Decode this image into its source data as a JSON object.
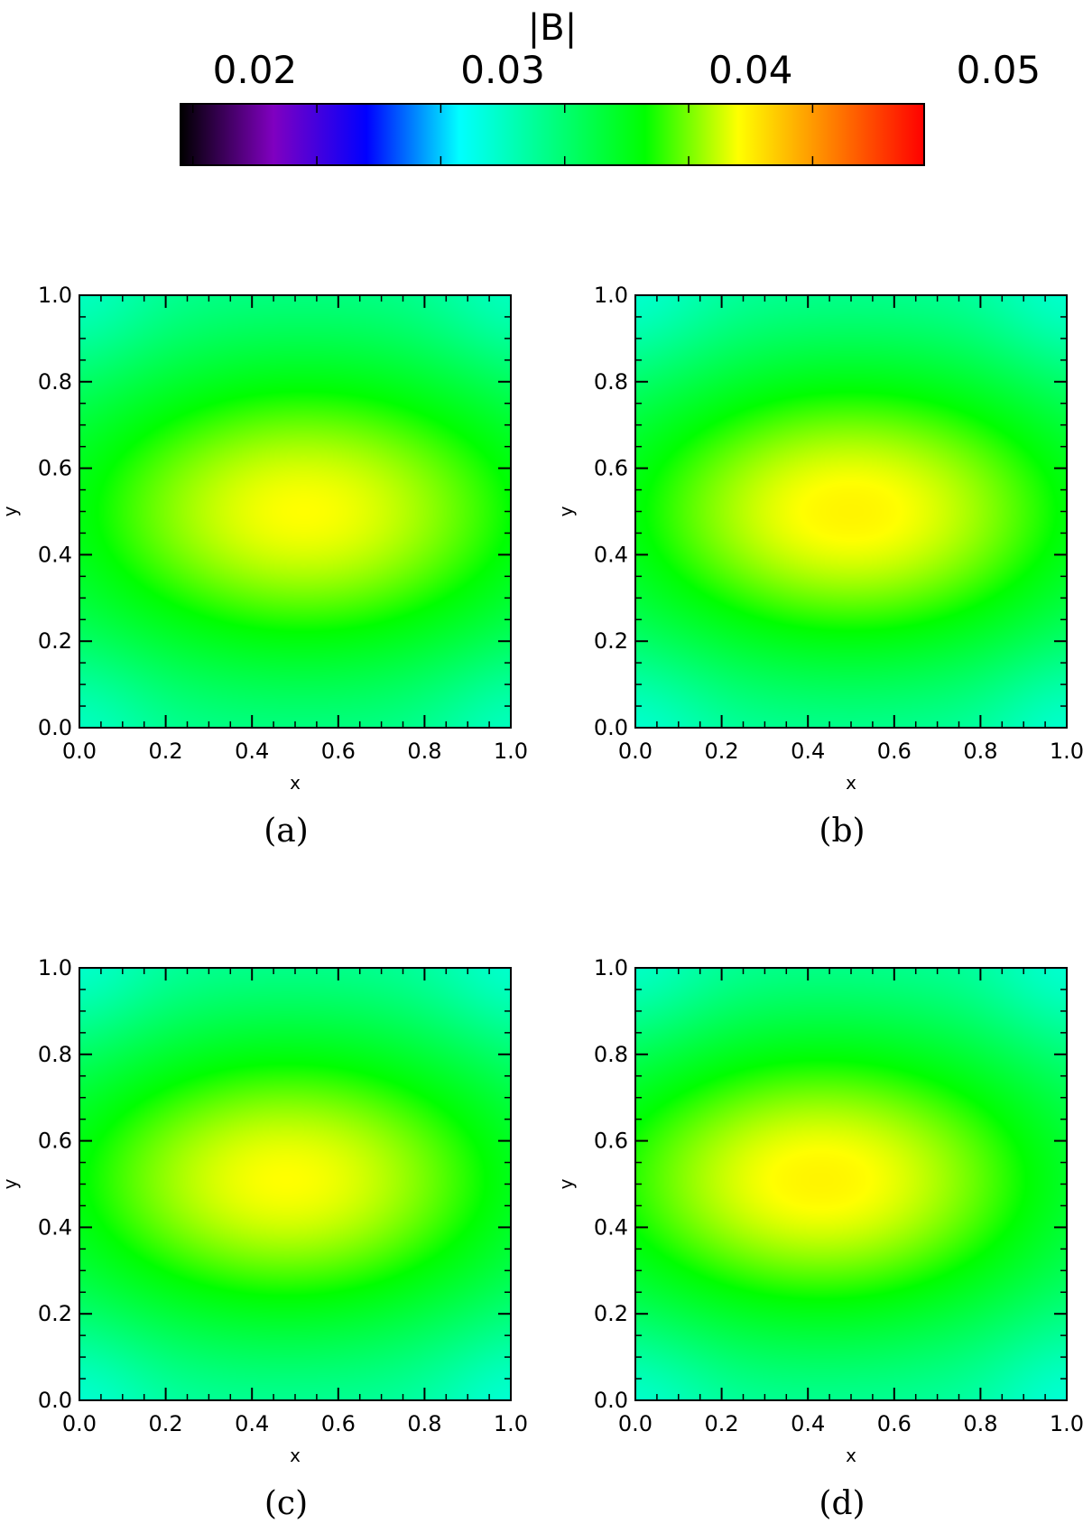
{
  "colorbar": {
    "title": "|B|",
    "ticks": [
      0.02,
      0.03,
      0.04,
      0.05
    ],
    "tick_labels": [
      "0.02",
      "0.03",
      "0.04",
      "0.05"
    ],
    "range": [
      0.017,
      0.047
    ],
    "colormap_stops": [
      "#000000",
      "#8000c0",
      "#0000ff",
      "#00ffff",
      "#00ff80",
      "#00ff00",
      "#ffff00",
      "#ff8000",
      "#ff0000"
    ]
  },
  "chart_data": [
    {
      "type": "heatmap",
      "panel_label": "(a)",
      "xlabel": "x",
      "ylabel": "y",
      "xlim": [
        0.0,
        1.0
      ],
      "ylim": [
        0.0,
        1.0
      ],
      "xticks": [
        "0.0",
        "0.2",
        "0.4",
        "0.6",
        "0.8",
        "1.0"
      ],
      "yticks": [
        "0.0",
        "0.2",
        "0.4",
        "0.6",
        "0.8",
        "1.0"
      ],
      "peak_x": 0.52,
      "peak_y": 0.5,
      "peak_value": 0.0395,
      "edge_value_center": 0.033,
      "corner_value": 0.0305
    },
    {
      "type": "heatmap",
      "panel_label": "(b)",
      "xlabel": "x",
      "ylabel": "y",
      "xlim": [
        0.0,
        1.0
      ],
      "ylim": [
        0.0,
        1.0
      ],
      "xticks": [
        "0.0",
        "0.2",
        "0.4",
        "0.6",
        "0.8",
        "1.0"
      ],
      "yticks": [
        "0.0",
        "0.2",
        "0.4",
        "0.6",
        "0.8",
        "1.0"
      ],
      "peak_x": 0.5,
      "peak_y": 0.5,
      "peak_value": 0.0398,
      "edge_value_center": 0.033,
      "corner_value": 0.03
    },
    {
      "type": "heatmap",
      "panel_label": "(c)",
      "xlabel": "x",
      "ylabel": "y",
      "xlim": [
        0.0,
        1.0
      ],
      "ylim": [
        0.0,
        1.0
      ],
      "xticks": [
        "0.0",
        "0.2",
        "0.4",
        "0.6",
        "0.8",
        "1.0"
      ],
      "yticks": [
        "0.0",
        "0.2",
        "0.4",
        "0.6",
        "0.8",
        "1.0"
      ],
      "peak_x": 0.48,
      "peak_y": 0.51,
      "peak_value": 0.0395,
      "edge_value_center": 0.033,
      "corner_value": 0.03
    },
    {
      "type": "heatmap",
      "panel_label": "(d)",
      "xlabel": "x",
      "ylabel": "y",
      "xlim": [
        0.0,
        1.0
      ],
      "ylim": [
        0.0,
        1.0
      ],
      "xticks": [
        "0.0",
        "0.2",
        "0.4",
        "0.6",
        "0.8",
        "1.0"
      ],
      "yticks": [
        "0.0",
        "0.2",
        "0.4",
        "0.6",
        "0.8",
        "1.0"
      ],
      "peak_x": 0.43,
      "peak_y": 0.51,
      "peak_value": 0.0398,
      "edge_value_center": 0.033,
      "corner_value": 0.03
    }
  ]
}
